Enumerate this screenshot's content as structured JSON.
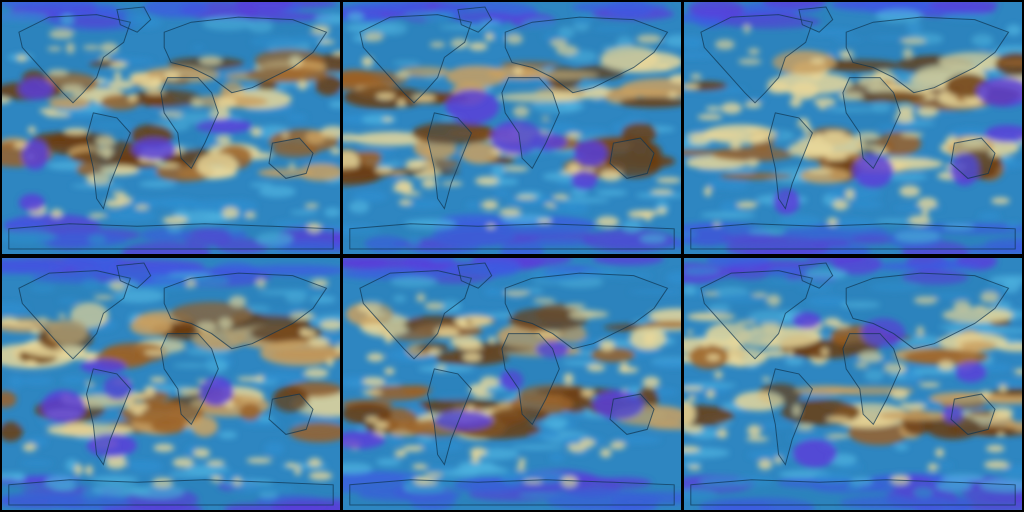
{
  "colors": {
    "background": "#000000",
    "ocean_base": "#2e86c1",
    "palette_wet": [
      "#5a3fd8",
      "#3d5be0",
      "#2f8fd0",
      "#4fb3e0"
    ],
    "palette_dry": [
      "#e8d79a",
      "#c9a060",
      "#9a6228",
      "#6b3c12"
    ],
    "land_outline": "#0f3550"
  },
  "panels": [
    {
      "id": "panel-1",
      "row": 0,
      "col": 0,
      "seed": 11
    },
    {
      "id": "panel-2",
      "row": 0,
      "col": 1,
      "seed": 23
    },
    {
      "id": "panel-3",
      "row": 0,
      "col": 2,
      "seed": 37
    },
    {
      "id": "panel-4",
      "row": 1,
      "col": 0,
      "seed": 41
    },
    {
      "id": "panel-5",
      "row": 1,
      "col": 1,
      "seed": 53
    },
    {
      "id": "panel-6",
      "row": 1,
      "col": 2,
      "seed": 67
    }
  ]
}
